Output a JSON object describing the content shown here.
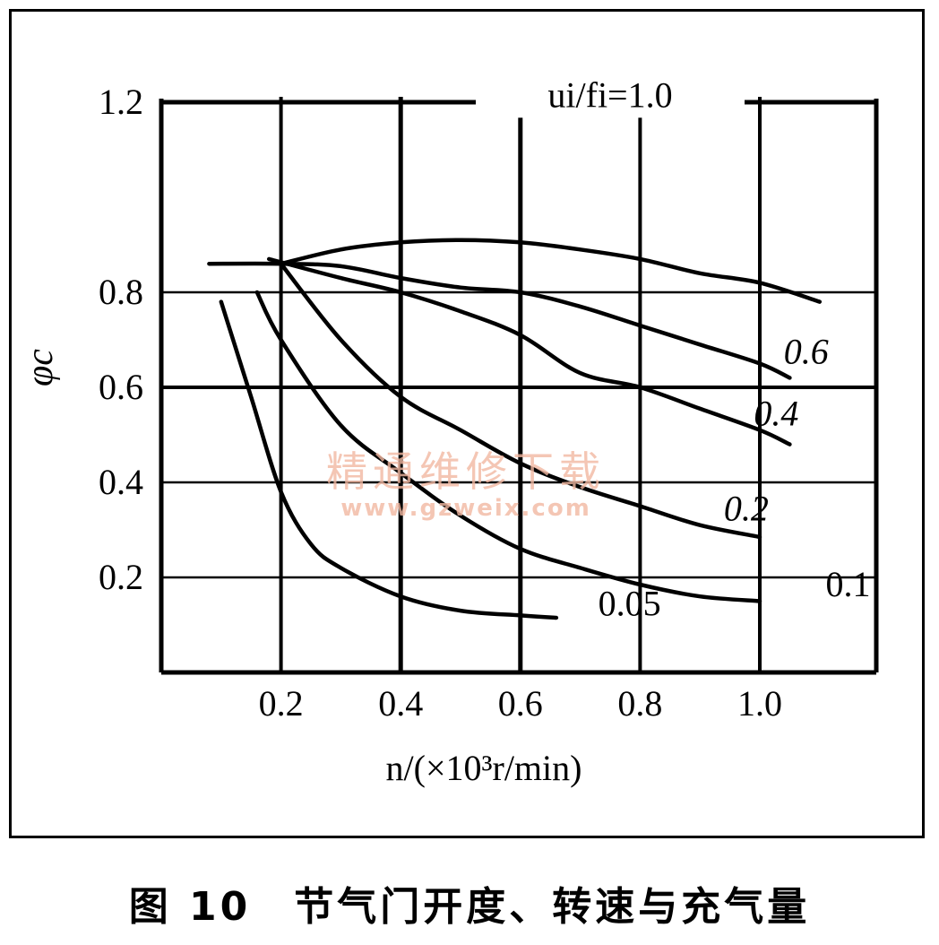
{
  "figure": {
    "caption": "图 10　节气门开度、转速与充气量"
  },
  "watermark": {
    "line1": "精通维修下载",
    "line2": "www.gzweix.com"
  },
  "chart_data": {
    "type": "line",
    "xlabel": "n/(×10³r/min)",
    "ylabel": "φc",
    "xlim": [
      0,
      1.2
    ],
    "ylim": [
      0,
      1.2
    ],
    "x_ticks": [
      "0.2",
      "0.4",
      "0.6",
      "0.8",
      "1.0"
    ],
    "y_ticks": [
      "0.2",
      "0.4",
      "0.6",
      "0.8",
      "1.2"
    ],
    "grid": true,
    "series": [
      {
        "name": "ui/fi=1.0",
        "label": "ui/fi=1.0",
        "label_pos": [
          0.75,
          1.19
        ],
        "points": [
          [
            0.2,
            0.86
          ],
          [
            0.3,
            0.89
          ],
          [
            0.4,
            0.905
          ],
          [
            0.5,
            0.91
          ],
          [
            0.6,
            0.905
          ],
          [
            0.7,
            0.89
          ],
          [
            0.8,
            0.87
          ],
          [
            0.9,
            0.84
          ],
          [
            1.0,
            0.82
          ],
          [
            1.1,
            0.78
          ]
        ]
      },
      {
        "name": "0.6",
        "label": "0.6",
        "label_pos": [
          1.04,
          0.65
        ],
        "points": [
          [
            0.08,
            0.86
          ],
          [
            0.2,
            0.86
          ],
          [
            0.3,
            0.855
          ],
          [
            0.4,
            0.83
          ],
          [
            0.5,
            0.81
          ],
          [
            0.6,
            0.8
          ],
          [
            0.7,
            0.77
          ],
          [
            0.8,
            0.73
          ],
          [
            0.9,
            0.69
          ],
          [
            1.0,
            0.65
          ],
          [
            1.05,
            0.62
          ]
        ]
      },
      {
        "name": "0.4",
        "label": "0.4",
        "label_pos": [
          0.99,
          0.52
        ],
        "points": [
          [
            0.18,
            0.87
          ],
          [
            0.3,
            0.83
          ],
          [
            0.4,
            0.8
          ],
          [
            0.5,
            0.76
          ],
          [
            0.6,
            0.71
          ],
          [
            0.7,
            0.63
          ],
          [
            0.8,
            0.6
          ],
          [
            0.9,
            0.555
          ],
          [
            1.0,
            0.51
          ],
          [
            1.05,
            0.48
          ]
        ]
      },
      {
        "name": "0.2",
        "label": "0.2",
        "label_pos": [
          0.94,
          0.32
        ],
        "points": [
          [
            0.2,
            0.86
          ],
          [
            0.3,
            0.7
          ],
          [
            0.4,
            0.58
          ],
          [
            0.5,
            0.51
          ],
          [
            0.6,
            0.44
          ],
          [
            0.7,
            0.39
          ],
          [
            0.8,
            0.35
          ],
          [
            0.9,
            0.31
          ],
          [
            1.0,
            0.285
          ]
        ]
      },
      {
        "name": "0.1",
        "label": "0.1",
        "label_pos": [
          1.11,
          0.16
        ],
        "points": [
          [
            0.16,
            0.8
          ],
          [
            0.2,
            0.7
          ],
          [
            0.3,
            0.52
          ],
          [
            0.4,
            0.42
          ],
          [
            0.5,
            0.33
          ],
          [
            0.6,
            0.26
          ],
          [
            0.7,
            0.22
          ],
          [
            0.8,
            0.185
          ],
          [
            0.9,
            0.16
          ],
          [
            1.0,
            0.15
          ]
        ]
      },
      {
        "name": "0.05",
        "label": "0.05",
        "label_pos": [
          0.73,
          0.12
        ],
        "points": [
          [
            0.1,
            0.78
          ],
          [
            0.15,
            0.58
          ],
          [
            0.2,
            0.38
          ],
          [
            0.25,
            0.27
          ],
          [
            0.3,
            0.22
          ],
          [
            0.4,
            0.16
          ],
          [
            0.5,
            0.13
          ],
          [
            0.6,
            0.12
          ],
          [
            0.66,
            0.115
          ]
        ]
      }
    ]
  }
}
